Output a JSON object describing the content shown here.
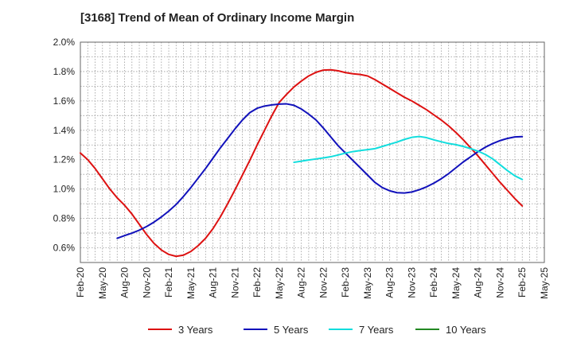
{
  "chart_data": {
    "type": "line",
    "title": "[3168]  Trend of Mean of Ordinary Income Margin",
    "xlabel": "",
    "ylabel": "",
    "x_ticks": [
      "Feb-20",
      "May-20",
      "Aug-20",
      "Nov-20",
      "Feb-21",
      "May-21",
      "Aug-21",
      "Nov-21",
      "Feb-22",
      "May-22",
      "Aug-22",
      "Nov-22",
      "Feb-23",
      "May-23",
      "Aug-23",
      "Nov-23",
      "Feb-24",
      "May-24",
      "Aug-24",
      "Nov-24",
      "Feb-25",
      "May-25"
    ],
    "y_ticks": [
      "0.6%",
      "0.8%",
      "1.0%",
      "1.2%",
      "1.4%",
      "1.6%",
      "1.8%",
      "2.0%"
    ],
    "ylim": [
      0.5,
      2.0
    ],
    "grid": true,
    "legend_position": "bottom",
    "series": [
      {
        "name": "3 Years",
        "color": "#dd1111",
        "points": [
          [
            "Feb-20",
            1.245
          ],
          [
            "Mar-20",
            1.2
          ],
          [
            "Apr-20",
            1.14
          ],
          [
            "May-20",
            1.07
          ],
          [
            "Jun-20",
            1.0
          ],
          [
            "Jul-20",
            0.94
          ],
          [
            "Aug-20",
            0.89
          ],
          [
            "Sep-20",
            0.83
          ],
          [
            "Oct-20",
            0.76
          ],
          [
            "Nov-20",
            0.69
          ],
          [
            "Dec-20",
            0.63
          ],
          [
            "Jan-21",
            0.585
          ],
          [
            "Feb-21",
            0.555
          ],
          [
            "Mar-21",
            0.542
          ],
          [
            "Apr-21",
            0.55
          ],
          [
            "May-21",
            0.575
          ],
          [
            "Jun-21",
            0.615
          ],
          [
            "Jul-21",
            0.665
          ],
          [
            "Aug-21",
            0.73
          ],
          [
            "Sep-21",
            0.81
          ],
          [
            "Oct-21",
            0.9
          ],
          [
            "Nov-21",
            0.995
          ],
          [
            "Dec-21",
            1.095
          ],
          [
            "Jan-22",
            1.195
          ],
          [
            "Feb-22",
            1.3
          ],
          [
            "Mar-22",
            1.4
          ],
          [
            "Apr-22",
            1.5
          ],
          [
            "May-22",
            1.59
          ],
          [
            "Jun-22",
            1.645
          ],
          [
            "Jul-22",
            1.695
          ],
          [
            "Aug-22",
            1.735
          ],
          [
            "Sep-22",
            1.77
          ],
          [
            "Oct-22",
            1.795
          ],
          [
            "Nov-22",
            1.81
          ],
          [
            "Dec-22",
            1.812
          ],
          [
            "Jan-23",
            1.805
          ],
          [
            "Feb-23",
            1.793
          ],
          [
            "Mar-23",
            1.785
          ],
          [
            "Apr-23",
            1.78
          ],
          [
            "May-23",
            1.77
          ],
          [
            "Jun-23",
            1.745
          ],
          [
            "Jul-23",
            1.715
          ],
          [
            "Aug-23",
            1.685
          ],
          [
            "Sep-23",
            1.655
          ],
          [
            "Oct-23",
            1.625
          ],
          [
            "Nov-23",
            1.6
          ],
          [
            "Dec-23",
            1.57
          ],
          [
            "Jan-24",
            1.54
          ],
          [
            "Feb-24",
            1.505
          ],
          [
            "Mar-24",
            1.47
          ],
          [
            "Apr-24",
            1.43
          ],
          [
            "May-24",
            1.385
          ],
          [
            "Jun-24",
            1.335
          ],
          [
            "Jul-24",
            1.28
          ],
          [
            "Aug-24",
            1.225
          ],
          [
            "Sep-24",
            1.165
          ],
          [
            "Oct-24",
            1.105
          ],
          [
            "Nov-24",
            1.045
          ],
          [
            "Dec-24",
            0.99
          ],
          [
            "Jan-25",
            0.935
          ],
          [
            "Feb-25",
            0.885
          ]
        ]
      },
      {
        "name": "5 Years",
        "color": "#1111bb",
        "points": [
          [
            "Jul-20",
            0.665
          ],
          [
            "Aug-20",
            0.683
          ],
          [
            "Sep-20",
            0.7
          ],
          [
            "Oct-20",
            0.72
          ],
          [
            "Nov-20",
            0.745
          ],
          [
            "Dec-20",
            0.775
          ],
          [
            "Jan-21",
            0.81
          ],
          [
            "Feb-21",
            0.85
          ],
          [
            "Mar-21",
            0.895
          ],
          [
            "Apr-21",
            0.95
          ],
          [
            "May-21",
            1.01
          ],
          [
            "Jun-21",
            1.075
          ],
          [
            "Jul-21",
            1.14
          ],
          [
            "Aug-21",
            1.21
          ],
          [
            "Sep-21",
            1.28
          ],
          [
            "Oct-21",
            1.345
          ],
          [
            "Nov-21",
            1.41
          ],
          [
            "Dec-21",
            1.47
          ],
          [
            "Jan-22",
            1.52
          ],
          [
            "Feb-22",
            1.55
          ],
          [
            "Mar-22",
            1.565
          ],
          [
            "Apr-22",
            1.573
          ],
          [
            "May-22",
            1.578
          ],
          [
            "Jun-22",
            1.58
          ],
          [
            "Jul-22",
            1.57
          ],
          [
            "Aug-22",
            1.545
          ],
          [
            "Sep-22",
            1.51
          ],
          [
            "Oct-22",
            1.47
          ],
          [
            "Nov-22",
            1.415
          ],
          [
            "Dec-22",
            1.355
          ],
          [
            "Jan-23",
            1.295
          ],
          [
            "Feb-23",
            1.245
          ],
          [
            "Mar-23",
            1.195
          ],
          [
            "Apr-23",
            1.145
          ],
          [
            "May-23",
            1.095
          ],
          [
            "Jun-23",
            1.045
          ],
          [
            "Jul-23",
            1.01
          ],
          [
            "Aug-23",
            0.988
          ],
          [
            "Sep-23",
            0.975
          ],
          [
            "Oct-23",
            0.973
          ],
          [
            "Nov-23",
            0.98
          ],
          [
            "Dec-23",
            0.995
          ],
          [
            "Jan-24",
            1.015
          ],
          [
            "Feb-24",
            1.04
          ],
          [
            "Mar-24",
            1.07
          ],
          [
            "Apr-24",
            1.105
          ],
          [
            "May-24",
            1.145
          ],
          [
            "Jun-24",
            1.185
          ],
          [
            "Jul-24",
            1.22
          ],
          [
            "Aug-24",
            1.255
          ],
          [
            "Sep-24",
            1.285
          ],
          [
            "Oct-24",
            1.31
          ],
          [
            "Nov-24",
            1.33
          ],
          [
            "Dec-24",
            1.345
          ],
          [
            "Jan-25",
            1.355
          ],
          [
            "Feb-25",
            1.357
          ]
        ]
      },
      {
        "name": "7 Years",
        "color": "#11dddd",
        "points": [
          [
            "Jul-22",
            1.182
          ],
          [
            "Aug-22",
            1.19
          ],
          [
            "Sep-22",
            1.198
          ],
          [
            "Oct-22",
            1.205
          ],
          [
            "Nov-22",
            1.212
          ],
          [
            "Dec-22",
            1.22
          ],
          [
            "Jan-23",
            1.232
          ],
          [
            "Feb-23",
            1.245
          ],
          [
            "Mar-23",
            1.255
          ],
          [
            "Apr-23",
            1.262
          ],
          [
            "May-23",
            1.268
          ],
          [
            "Jun-23",
            1.275
          ],
          [
            "Jul-23",
            1.29
          ],
          [
            "Aug-23",
            1.305
          ],
          [
            "Sep-23",
            1.32
          ],
          [
            "Oct-23",
            1.338
          ],
          [
            "Nov-23",
            1.352
          ],
          [
            "Dec-23",
            1.358
          ],
          [
            "Jan-24",
            1.35
          ],
          [
            "Feb-24",
            1.335
          ],
          [
            "Mar-24",
            1.322
          ],
          [
            "Apr-24",
            1.31
          ],
          [
            "May-24",
            1.302
          ],
          [
            "Jun-24",
            1.29
          ],
          [
            "Jul-24",
            1.275
          ],
          [
            "Aug-24",
            1.258
          ],
          [
            "Sep-24",
            1.235
          ],
          [
            "Oct-24",
            1.205
          ],
          [
            "Nov-24",
            1.165
          ],
          [
            "Dec-24",
            1.125
          ],
          [
            "Jan-25",
            1.09
          ],
          [
            "Feb-25",
            1.065
          ]
        ]
      },
      {
        "name": "10 Years",
        "color": "#228822",
        "points": []
      }
    ]
  }
}
